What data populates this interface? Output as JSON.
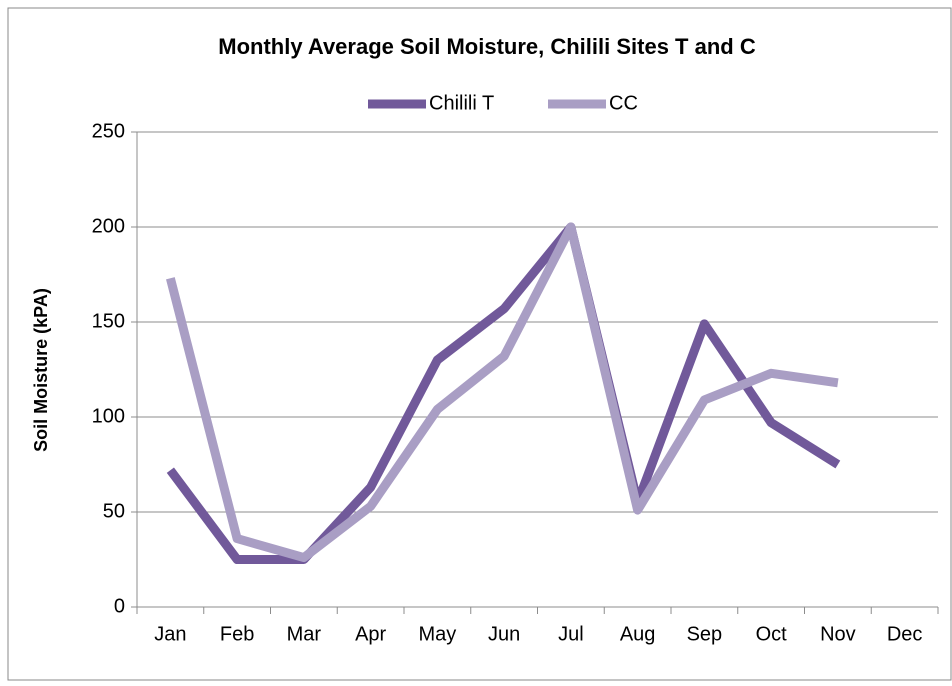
{
  "chart_data": {
    "type": "line",
    "title": "Monthly Average Soil Moisture, Chilili Sites T and C",
    "y_label": "Soil Moisture (kPA)",
    "categories": [
      "Jan",
      "Feb",
      "Mar",
      "Apr",
      "May",
      "Jun",
      "Jul",
      "Aug",
      "Sep",
      "Oct",
      "Nov",
      "Dec"
    ],
    "series": [
      {
        "name": "Chilili T",
        "color": "#71599a",
        "values": [
          72,
          25,
          25,
          63,
          130,
          157,
          200,
          55,
          149,
          97,
          75,
          null
        ]
      },
      {
        "name": "CC",
        "color": "#a99ec4",
        "values": [
          173,
          36,
          26,
          53,
          104,
          132,
          200,
          51,
          109,
          123,
          118,
          null
        ]
      }
    ],
    "ylim": [
      0,
      250
    ],
    "yticks": [
      0,
      50,
      100,
      150,
      200,
      250
    ],
    "grid": true,
    "legend": "top"
  }
}
